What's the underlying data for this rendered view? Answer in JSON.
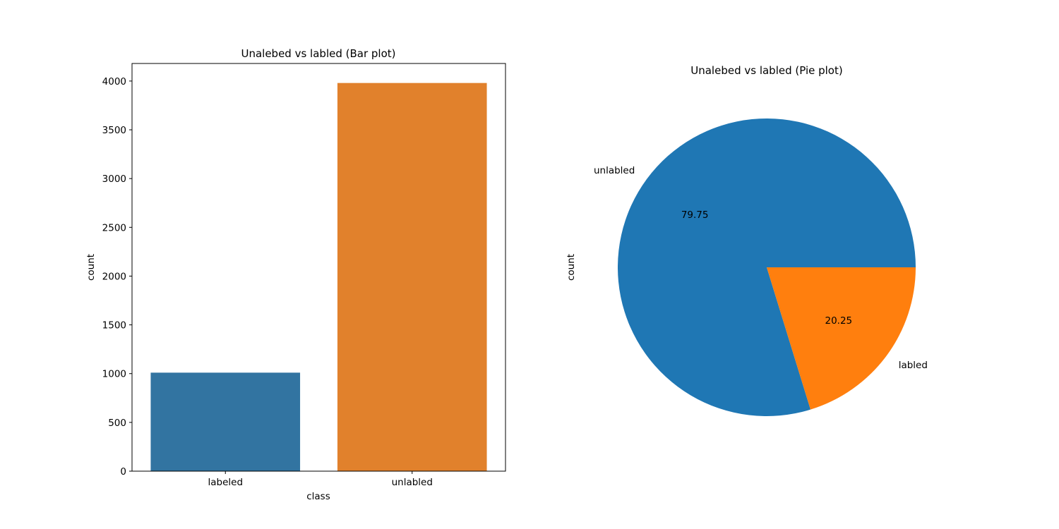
{
  "chart_data": [
    {
      "type": "bar",
      "title": "Unalebed vs labled (Bar plot)",
      "xlabel": "class",
      "ylabel": "count",
      "categories": [
        "labeled",
        "unlabled"
      ],
      "values": [
        1010,
        3980
      ],
      "ylim": [
        0,
        4180
      ],
      "yticks": [
        0,
        500,
        1000,
        1500,
        2000,
        2500,
        3000,
        3500,
        4000
      ],
      "colors": [
        "#3274a1",
        "#e1812c"
      ],
      "grid": false
    },
    {
      "type": "pie",
      "title": "Unalebed vs labled (Pie plot)",
      "ylabel": "count",
      "slices": [
        {
          "label": "unlabled",
          "value": 79.75,
          "pct_label": "79.75",
          "color": "#1f77b4"
        },
        {
          "label": "labled",
          "value": 20.25,
          "pct_label": "20.25",
          "color": "#ff7f0e"
        }
      ]
    }
  ]
}
